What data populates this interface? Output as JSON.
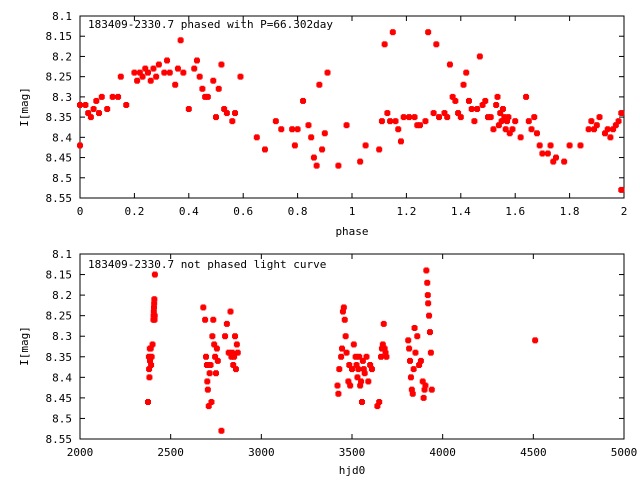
{
  "chart_data": [
    {
      "type": "scatter",
      "title": "183409-2330.7 phased with P=66.302day",
      "xlabel": "phase",
      "ylabel": "I[mag]",
      "xlim": [
        0,
        2
      ],
      "ylim": [
        8.55,
        8.1
      ],
      "y_inverted": true,
      "grid": false,
      "legend": "none",
      "color": "#ff0000",
      "xticks": [
        "0",
        "0.2",
        "0.4",
        "0.6",
        "0.8",
        "1",
        "1.2",
        "1.4",
        "1.6",
        "1.8",
        "2"
      ],
      "yticks": [
        "8.1",
        "8.15",
        "8.2",
        "8.25",
        "8.3",
        "8.35",
        "8.4",
        "8.45",
        "8.5",
        "8.55"
      ],
      "series": [
        {
          "points": [
            [
              0.0,
              8.32
            ],
            [
              0.0,
              8.42
            ],
            [
              0.02,
              8.32
            ],
            [
              0.03,
              8.34
            ],
            [
              0.04,
              8.35
            ],
            [
              0.05,
              8.33
            ],
            [
              0.06,
              8.31
            ],
            [
              0.07,
              8.34
            ],
            [
              0.08,
              8.3
            ],
            [
              0.1,
              8.33
            ],
            [
              0.12,
              8.3
            ],
            [
              0.14,
              8.3
            ],
            [
              0.15,
              8.25
            ],
            [
              0.17,
              8.32
            ],
            [
              0.2,
              8.24
            ],
            [
              0.21,
              8.26
            ],
            [
              0.22,
              8.24
            ],
            [
              0.23,
              8.25
            ],
            [
              0.24,
              8.23
            ],
            [
              0.25,
              8.24
            ],
            [
              0.26,
              8.26
            ],
            [
              0.27,
              8.23
            ],
            [
              0.28,
              8.25
            ],
            [
              0.29,
              8.22
            ],
            [
              0.31,
              8.24
            ],
            [
              0.32,
              8.21
            ],
            [
              0.33,
              8.24
            ],
            [
              0.35,
              8.27
            ],
            [
              0.36,
              8.23
            ],
            [
              0.37,
              8.16
            ],
            [
              0.38,
              8.24
            ],
            [
              0.4,
              8.33
            ],
            [
              0.42,
              8.23
            ],
            [
              0.43,
              8.21
            ],
            [
              0.44,
              8.25
            ],
            [
              0.45,
              8.28
            ],
            [
              0.46,
              8.3
            ],
            [
              0.47,
              8.3
            ],
            [
              0.49,
              8.26
            ],
            [
              0.5,
              8.35
            ],
            [
              0.51,
              8.28
            ],
            [
              0.52,
              8.22
            ],
            [
              0.53,
              8.33
            ],
            [
              0.54,
              8.34
            ],
            [
              0.56,
              8.36
            ],
            [
              0.57,
              8.34
            ],
            [
              0.59,
              8.25
            ],
            [
              0.65,
              8.4
            ],
            [
              0.68,
              8.43
            ],
            [
              0.72,
              8.36
            ],
            [
              0.74,
              8.38
            ],
            [
              0.78,
              8.38
            ],
            [
              0.79,
              8.42
            ],
            [
              0.8,
              8.38
            ],
            [
              0.82,
              8.31
            ],
            [
              0.84,
              8.37
            ],
            [
              0.85,
              8.4
            ],
            [
              0.86,
              8.45
            ],
            [
              0.87,
              8.47
            ],
            [
              0.88,
              8.27
            ],
            [
              0.89,
              8.43
            ],
            [
              0.9,
              8.39
            ],
            [
              0.91,
              8.24
            ],
            [
              0.95,
              8.47
            ],
            [
              0.98,
              8.37
            ],
            [
              1.03,
              8.46
            ],
            [
              1.05,
              8.42
            ],
            [
              1.1,
              8.43
            ],
            [
              1.11,
              8.36
            ],
            [
              1.12,
              8.17
            ],
            [
              1.13,
              8.34
            ],
            [
              1.14,
              8.36
            ],
            [
              1.15,
              8.14
            ],
            [
              1.16,
              8.36
            ],
            [
              1.17,
              8.38
            ],
            [
              1.18,
              8.41
            ],
            [
              1.19,
              8.35
            ],
            [
              1.21,
              8.35
            ],
            [
              1.23,
              8.35
            ],
            [
              1.24,
              8.37
            ],
            [
              1.25,
              8.37
            ],
            [
              1.27,
              8.36
            ],
            [
              1.28,
              8.14
            ],
            [
              1.3,
              8.34
            ],
            [
              1.31,
              8.17
            ],
            [
              1.32,
              8.35
            ],
            [
              1.34,
              8.34
            ],
            [
              1.35,
              8.35
            ],
            [
              1.36,
              8.22
            ],
            [
              1.37,
              8.3
            ],
            [
              1.38,
              8.31
            ],
            [
              1.39,
              8.34
            ],
            [
              1.4,
              8.35
            ],
            [
              1.41,
              8.27
            ],
            [
              1.42,
              8.24
            ],
            [
              1.43,
              8.31
            ],
            [
              1.44,
              8.33
            ],
            [
              1.45,
              8.36
            ],
            [
              1.46,
              8.33
            ],
            [
              1.47,
              8.2
            ],
            [
              1.48,
              8.32
            ],
            [
              1.49,
              8.31
            ],
            [
              1.5,
              8.35
            ],
            [
              1.51,
              8.35
            ],
            [
              1.52,
              8.38
            ],
            [
              1.53,
              8.32
            ],
            [
              1.535,
              8.3
            ],
            [
              1.54,
              8.37
            ],
            [
              1.545,
              8.34
            ],
            [
              1.55,
              8.36
            ],
            [
              1.555,
              8.33
            ],
            [
              1.56,
              8.35
            ],
            [
              1.565,
              8.38
            ],
            [
              1.57,
              8.36
            ],
            [
              1.575,
              8.35
            ],
            [
              1.58,
              8.39
            ],
            [
              1.59,
              8.38
            ],
            [
              1.6,
              8.36
            ],
            [
              1.62,
              8.4
            ],
            [
              1.64,
              8.3
            ],
            [
              1.65,
              8.36
            ],
            [
              1.66,
              8.38
            ],
            [
              1.67,
              8.35
            ],
            [
              1.68,
              8.39
            ],
            [
              1.69,
              8.42
            ],
            [
              1.7,
              8.44
            ],
            [
              1.72,
              8.44
            ],
            [
              1.73,
              8.42
            ],
            [
              1.74,
              8.46
            ],
            [
              1.75,
              8.45
            ],
            [
              1.78,
              8.46
            ],
            [
              1.8,
              8.42
            ],
            [
              1.84,
              8.42
            ],
            [
              1.87,
              8.38
            ],
            [
              1.88,
              8.36
            ],
            [
              1.89,
              8.38
            ],
            [
              1.9,
              8.37
            ],
            [
              1.91,
              8.35
            ],
            [
              1.93,
              8.39
            ],
            [
              1.94,
              8.38
            ],
            [
              1.95,
              8.4
            ],
            [
              1.96,
              8.38
            ],
            [
              1.97,
              8.37
            ],
            [
              1.98,
              8.36
            ],
            [
              1.99,
              8.34
            ],
            [
              1.99,
              8.53
            ]
          ]
        }
      ]
    },
    {
      "type": "scatter",
      "title": "183409-2330.7 not phased light curve",
      "xlabel": "hjd0",
      "ylabel": "I[mag]",
      "xlim": [
        2000,
        5000
      ],
      "ylim": [
        8.55,
        8.1
      ],
      "y_inverted": true,
      "grid": false,
      "legend": "none",
      "color": "#ff0000",
      "xticks": [
        "2000",
        "2500",
        "3000",
        "3500",
        "4000",
        "4500",
        "5000"
      ],
      "yticks": [
        "8.1",
        "8.15",
        "8.2",
        "8.25",
        "8.3",
        "8.35",
        "8.4",
        "8.45",
        "8.5",
        "8.55"
      ],
      "series": [
        {
          "points": [
            [
              2375,
              8.46
            ],
            [
              2380,
              8.35
            ],
            [
              2381,
              8.38
            ],
            [
              2383,
              8.4
            ],
            [
              2385,
              8.33
            ],
            [
              2386,
              8.36
            ],
            [
              2390,
              8.33
            ],
            [
              2392,
              8.37
            ],
            [
              2395,
              8.35
            ],
            [
              2400,
              8.32
            ],
            [
              2405,
              8.26
            ],
            [
              2406,
              8.25
            ],
            [
              2407,
              8.24
            ],
            [
              2408,
              8.23
            ],
            [
              2409,
              8.22
            ],
            [
              2410,
              8.21
            ],
            [
              2411,
              8.26
            ],
            [
              2412,
              8.25
            ],
            [
              2413,
              8.15
            ],
            [
              2680,
              8.23
            ],
            [
              2690,
              8.26
            ],
            [
              2695,
              8.35
            ],
            [
              2700,
              8.37
            ],
            [
              2702,
              8.41
            ],
            [
              2705,
              8.43
            ],
            [
              2710,
              8.47
            ],
            [
              2715,
              8.39
            ],
            [
              2720,
              8.37
            ],
            [
              2725,
              8.46
            ],
            [
              2730,
              8.3
            ],
            [
              2735,
              8.26
            ],
            [
              2740,
              8.32
            ],
            [
              2745,
              8.35
            ],
            [
              2750,
              8.39
            ],
            [
              2755,
              8.33
            ],
            [
              2760,
              8.36
            ],
            [
              2780,
              8.53
            ],
            [
              2800,
              8.3
            ],
            [
              2810,
              8.27
            ],
            [
              2820,
              8.34
            ],
            [
              2830,
              8.24
            ],
            [
              2835,
              8.35
            ],
            [
              2840,
              8.34
            ],
            [
              2845,
              8.37
            ],
            [
              2850,
              8.35
            ],
            [
              2855,
              8.3
            ],
            [
              2860,
              8.38
            ],
            [
              2865,
              8.32
            ],
            [
              2870,
              8.34
            ],
            [
              3420,
              8.42
            ],
            [
              3425,
              8.44
            ],
            [
              3430,
              8.38
            ],
            [
              3440,
              8.35
            ],
            [
              3445,
              8.33
            ],
            [
              3450,
              8.24
            ],
            [
              3455,
              8.23
            ],
            [
              3460,
              8.26
            ],
            [
              3465,
              8.3
            ],
            [
              3470,
              8.34
            ],
            [
              3480,
              8.41
            ],
            [
              3485,
              8.37
            ],
            [
              3490,
              8.42
            ],
            [
              3500,
              8.38
            ],
            [
              3510,
              8.32
            ],
            [
              3520,
              8.35
            ],
            [
              3525,
              8.37
            ],
            [
              3530,
              8.4
            ],
            [
              3535,
              8.38
            ],
            [
              3540,
              8.35
            ],
            [
              3545,
              8.42
            ],
            [
              3550,
              8.41
            ],
            [
              3555,
              8.46
            ],
            [
              3560,
              8.36
            ],
            [
              3565,
              8.38
            ],
            [
              3570,
              8.39
            ],
            [
              3580,
              8.35
            ],
            [
              3590,
              8.41
            ],
            [
              3600,
              8.37
            ],
            [
              3610,
              8.38
            ],
            [
              3640,
              8.47
            ],
            [
              3650,
              8.46
            ],
            [
              3660,
              8.35
            ],
            [
              3665,
              8.33
            ],
            [
              3670,
              8.32
            ],
            [
              3675,
              8.27
            ],
            [
              3680,
              8.33
            ],
            [
              3685,
              8.34
            ],
            [
              3690,
              8.35
            ],
            [
              3810,
              8.31
            ],
            [
              3815,
              8.33
            ],
            [
              3820,
              8.36
            ],
            [
              3825,
              8.4
            ],
            [
              3830,
              8.43
            ],
            [
              3835,
              8.44
            ],
            [
              3840,
              8.38
            ],
            [
              3845,
              8.28
            ],
            [
              3850,
              8.34
            ],
            [
              3860,
              8.3
            ],
            [
              3870,
              8.37
            ],
            [
              3880,
              8.36
            ],
            [
              3890,
              8.41
            ],
            [
              3895,
              8.45
            ],
            [
              3900,
              8.43
            ],
            [
              3905,
              8.42
            ],
            [
              3910,
              8.14
            ],
            [
              3915,
              8.17
            ],
            [
              3918,
              8.2
            ],
            [
              3920,
              8.22
            ],
            [
              3925,
              8.25
            ],
            [
              3930,
              8.29
            ],
            [
              3935,
              8.34
            ],
            [
              3940,
              8.43
            ],
            [
              4510,
              8.31
            ]
          ]
        }
      ]
    }
  ]
}
